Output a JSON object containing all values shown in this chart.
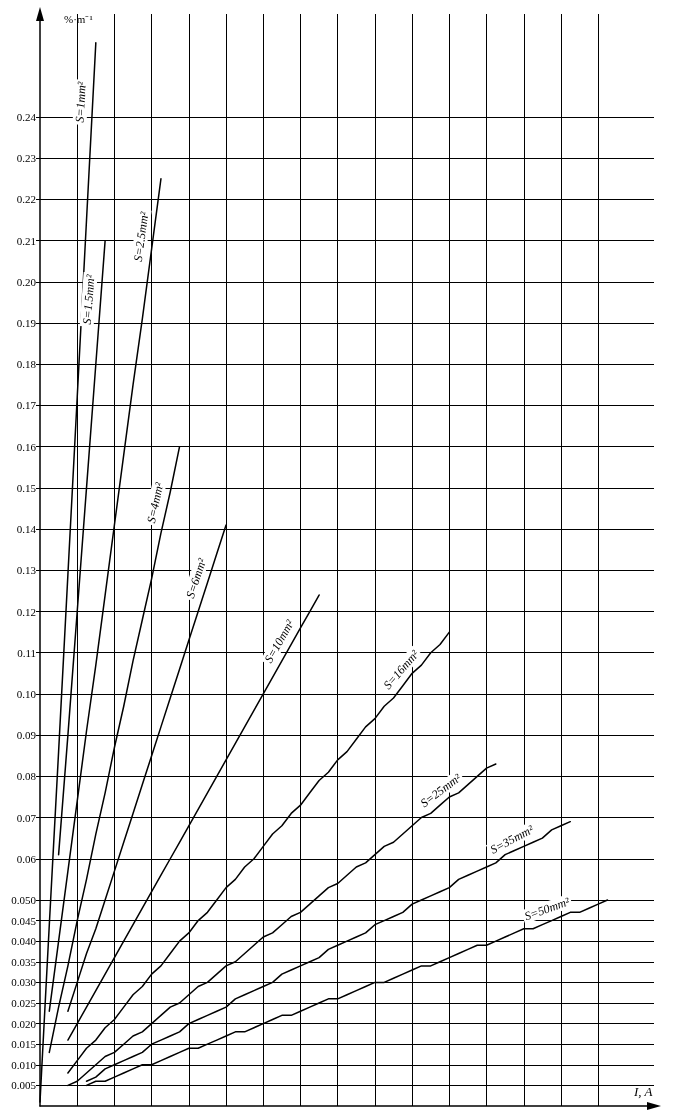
{
  "chart_data": {
    "type": "line",
    "xlabel": "I, A",
    "ylabel": "%·m⁻¹",
    "categories": [
      null,
      null,
      null,
      null,
      null,
      null,
      null,
      null,
      null,
      null,
      null,
      null,
      null,
      null,
      null,
      null,
      null,
      null,
      null,
      null,
      null,
      null,
      null,
      null,
      null,
      null,
      null,
      null,
      null,
      null,
      null,
      null,
      null,
      null,
      null,
      null,
      null,
      null,
      null,
      null,
      null,
      null,
      null,
      null,
      null,
      null,
      null,
      null,
      null,
      null,
      null,
      null,
      null,
      null,
      null,
      null,
      null,
      null,
      null,
      null,
      null,
      null,
      null,
      null,
      null,
      null,
      null
    ],
    "ylim": [
      0,
      0.265
    ],
    "yticks": [
      0.005,
      {
        "value": 0.01,
        "label": "0.010"
      },
      0.015,
      {
        "value": 0.02,
        "label": "0.020"
      },
      0.025,
      {
        "value": 0.03,
        "label": "0.030"
      },
      0.035,
      {
        "value": 0.04,
        "label": "0.040"
      },
      0.045,
      {
        "value": 0.05,
        "label": "0.050"
      },
      0.06,
      0.07,
      0.08,
      0.09,
      {
        "value": 0.1,
        "label": "0.10"
      },
      0.11,
      0.12,
      0.13,
      0.14,
      0.15,
      0.16,
      0.17,
      0.18,
      0.19,
      {
        "value": 0.2,
        "label": "0.20"
      },
      0.21,
      0.22,
      0.23,
      0.24
    ],
    "tick_labels": "y",
    "grid": true,
    "marker": "none",
    "line_style": "solid",
    "series": [
      {
        "name": "S=1mm²",
        "color": "#000000",
        "values": [
          0.001,
          0.044,
          0.086,
          0.129,
          0.172,
          0.215,
          0.258,
          null,
          null,
          null,
          null,
          null,
          null,
          null,
          null,
          null,
          null,
          null,
          null,
          null,
          null,
          null,
          null,
          null,
          null,
          null,
          null,
          null,
          null,
          null,
          null,
          null,
          null,
          null,
          null,
          null,
          null,
          null,
          null,
          null,
          null,
          null,
          null,
          null,
          null,
          null,
          null,
          null,
          null,
          null,
          null,
          null,
          null,
          null,
          null,
          null,
          null,
          null,
          null,
          null,
          null,
          null,
          null,
          null,
          null,
          null,
          null
        ]
      },
      {
        "name": "S=1.5mm²",
        "color": "#000000",
        "values": [
          null,
          null,
          0.061,
          0.09,
          0.12,
          0.15,
          0.18,
          0.21,
          null,
          null,
          null,
          null,
          null,
          null,
          null,
          null,
          null,
          null,
          null,
          null,
          null,
          null,
          null,
          null,
          null,
          null,
          null,
          null,
          null,
          null,
          null,
          null,
          null,
          null,
          null,
          null,
          null,
          null,
          null,
          null,
          null,
          null,
          null,
          null,
          null,
          null,
          null,
          null,
          null,
          null,
          null,
          null,
          null,
          null,
          null,
          null,
          null,
          null,
          null,
          null,
          null,
          null,
          null,
          null,
          null,
          null,
          null
        ]
      },
      {
        "name": "S=2.5mm²",
        "color": "#000000",
        "values": [
          null,
          0.023,
          0.04,
          0.057,
          0.074,
          0.091,
          0.107,
          0.124,
          0.141,
          0.158,
          0.175,
          0.191,
          0.208,
          0.225,
          null,
          null,
          null,
          null,
          null,
          null,
          null,
          null,
          null,
          null,
          null,
          null,
          null,
          null,
          null,
          null,
          null,
          null,
          null,
          null,
          null,
          null,
          null,
          null,
          null,
          null,
          null,
          null,
          null,
          null,
          null,
          null,
          null,
          null,
          null,
          null,
          null,
          null,
          null,
          null,
          null,
          null,
          null,
          null,
          null,
          null,
          null,
          null,
          null,
          null,
          null,
          null,
          null
        ]
      },
      {
        "name": "S=4mm²",
        "color": "#000000",
        "values": [
          null,
          0.013,
          0.024,
          0.034,
          0.045,
          0.055,
          0.066,
          0.076,
          0.087,
          0.097,
          0.108,
          0.118,
          0.128,
          0.139,
          0.149,
          0.16,
          null,
          null,
          null,
          null,
          null,
          null,
          null,
          null,
          null,
          null,
          null,
          null,
          null,
          null,
          null,
          null,
          null,
          null,
          null,
          null,
          null,
          null,
          null,
          null,
          null,
          null,
          null,
          null,
          null,
          null,
          null,
          null,
          null,
          null,
          null,
          null,
          null,
          null,
          null,
          null,
          null,
          null,
          null,
          null,
          null,
          null,
          null,
          null,
          null,
          null,
          null
        ]
      },
      {
        "name": "S=6mm²",
        "color": "#000000",
        "values": [
          null,
          null,
          null,
          0.023,
          0.03,
          0.037,
          0.043,
          0.05,
          0.057,
          0.064,
          0.071,
          0.078,
          0.085,
          0.092,
          0.099,
          0.106,
          0.113,
          0.12,
          0.127,
          0.134,
          0.141,
          null,
          null,
          null,
          null,
          null,
          null,
          null,
          null,
          null,
          null,
          null,
          null,
          null,
          null,
          null,
          null,
          null,
          null,
          null,
          null,
          null,
          null,
          null,
          null,
          null,
          null,
          null,
          null,
          null,
          null,
          null,
          null,
          null,
          null,
          null,
          null,
          null,
          null,
          null,
          null,
          null,
          null,
          null,
          null,
          null,
          null
        ]
      },
      {
        "name": "S=10mm²",
        "color": "#000000",
        "values": [
          null,
          null,
          null,
          0.016,
          0.02,
          0.024,
          0.028,
          0.032,
          0.036,
          0.04,
          0.044,
          0.048,
          0.052,
          0.056,
          0.06,
          0.064,
          0.068,
          0.072,
          0.076,
          0.08,
          0.084,
          0.088,
          0.092,
          0.096,
          0.1,
          0.104,
          0.108,
          0.112,
          0.116,
          0.12,
          0.124,
          null,
          null,
          null,
          null,
          null,
          null,
          null,
          null,
          null,
          null,
          null,
          null,
          null,
          null,
          null,
          null,
          null,
          null,
          null,
          null,
          null,
          null,
          null,
          null,
          null,
          null,
          null,
          null,
          null,
          null,
          null,
          null,
          null,
          null,
          null,
          null
        ]
      },
      {
        "name": "S=16mm²",
        "color": "#000000",
        "values": [
          null,
          null,
          null,
          0.008,
          0.011,
          0.014,
          0.016,
          0.019,
          0.021,
          0.024,
          0.027,
          0.029,
          0.032,
          0.034,
          0.037,
          0.04,
          0.042,
          0.045,
          0.047,
          0.05,
          0.053,
          0.055,
          0.058,
          0.06,
          0.063,
          0.066,
          0.068,
          0.071,
          0.073,
          0.076,
          0.079,
          0.081,
          0.084,
          0.086,
          0.089,
          0.092,
          0.094,
          0.097,
          0.099,
          0.102,
          0.105,
          0.107,
          0.11,
          0.112,
          0.115,
          null,
          null,
          null,
          null,
          null,
          null,
          null,
          null,
          null,
          null,
          null,
          null,
          null,
          null,
          null,
          null,
          null,
          null,
          null,
          null,
          null,
          null
        ]
      },
      {
        "name": "S=25mm²",
        "color": "#000000",
        "values": [
          null,
          null,
          null,
          0.005,
          0.006,
          0.008,
          0.01,
          0.012,
          0.013,
          0.015,
          0.017,
          0.018,
          0.02,
          0.022,
          0.024,
          0.025,
          0.027,
          0.029,
          0.03,
          0.032,
          0.034,
          0.035,
          0.037,
          0.039,
          0.041,
          0.042,
          0.044,
          0.046,
          0.047,
          0.049,
          0.051,
          0.053,
          0.054,
          0.056,
          0.058,
          0.059,
          0.061,
          0.063,
          0.064,
          0.066,
          0.068,
          0.07,
          0.071,
          0.073,
          0.075,
          0.076,
          0.078,
          0.08,
          0.082,
          0.083,
          null,
          null,
          null,
          null,
          null,
          null,
          null,
          null,
          null,
          null,
          null,
          null,
          null,
          null,
          null,
          null,
          null
        ]
      },
      {
        "name": "S=35mm²",
        "color": "#000000",
        "values": [
          null,
          null,
          null,
          null,
          null,
          0.006,
          0.007,
          0.009,
          0.01,
          0.011,
          0.012,
          0.013,
          0.015,
          0.016,
          0.017,
          0.018,
          0.02,
          0.021,
          0.022,
          0.023,
          0.024,
          0.026,
          0.027,
          0.028,
          0.029,
          0.03,
          0.032,
          0.033,
          0.034,
          0.035,
          0.036,
          0.038,
          0.039,
          0.04,
          0.041,
          0.042,
          0.044,
          0.045,
          0.046,
          0.047,
          0.049,
          0.05,
          0.051,
          0.052,
          0.053,
          0.055,
          0.056,
          0.057,
          0.058,
          0.059,
          0.061,
          0.062,
          0.063,
          0.064,
          0.065,
          0.067,
          0.068,
          0.069,
          null,
          null,
          null,
          null,
          null,
          null,
          null,
          null,
          null
        ]
      },
      {
        "name": "S=50mm²",
        "color": "#000000",
        "values": [
          null,
          null,
          null,
          null,
          null,
          0.005,
          0.006,
          0.006,
          0.007,
          0.008,
          0.009,
          0.01,
          0.01,
          0.011,
          0.012,
          0.013,
          0.014,
          0.014,
          0.015,
          0.016,
          0.017,
          0.018,
          0.018,
          0.019,
          0.02,
          0.021,
          0.022,
          0.022,
          0.023,
          0.024,
          0.025,
          0.026,
          0.026,
          0.027,
          0.028,
          0.029,
          0.03,
          0.03,
          0.031,
          0.032,
          0.033,
          0.034,
          0.034,
          0.035,
          0.036,
          0.037,
          0.038,
          0.039,
          0.039,
          0.04,
          0.041,
          0.042,
          0.043,
          0.043,
          0.044,
          0.045,
          0.046,
          0.047,
          0.047,
          0.048,
          0.049,
          0.05,
          null,
          null,
          null,
          null,
          null
        ]
      }
    ]
  }
}
